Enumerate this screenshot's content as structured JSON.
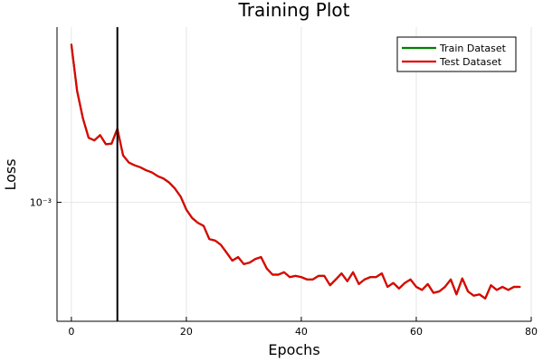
{
  "chart_data": {
    "type": "line",
    "title": "Training Plot",
    "xlabel": "Epochs",
    "ylabel": "Loss",
    "xlim": [
      -2.5,
      80
    ],
    "x_ticks": [
      0,
      20,
      40,
      60,
      80
    ],
    "y_scale": "log",
    "y_tick_values": [
      0.001
    ],
    "y_tick_labels": [
      "10⁻³"
    ],
    "ylim": [
      0.000304,
      0.00578
    ],
    "grid": true,
    "legend_position": "top-right",
    "vline": {
      "x": 8,
      "color": "#000000"
    },
    "series": [
      {
        "name": "Train Dataset",
        "color": "#008000",
        "x": [
          0,
          1,
          2,
          3,
          4,
          5,
          6,
          7,
          8,
          9,
          10,
          11,
          12,
          13,
          14,
          15,
          16,
          17,
          18,
          19,
          20,
          21,
          22,
          23,
          24,
          25,
          26,
          27,
          28,
          29,
          30,
          31,
          32,
          33,
          34,
          35,
          36,
          37,
          38,
          39,
          40,
          41,
          42,
          43,
          44,
          45,
          46,
          47,
          48,
          49,
          50,
          51,
          52,
          53,
          54,
          55,
          56,
          57,
          58,
          59,
          60,
          61,
          62,
          63,
          64,
          65,
          66,
          67,
          68,
          69,
          70,
          71,
          72,
          73,
          74,
          75,
          76,
          77,
          78
        ],
        "y": [
          0.00485,
          0.00305,
          0.00232,
          0.00191,
          0.00186,
          0.00196,
          0.00179,
          0.0018,
          0.00209,
          0.0016,
          0.00149,
          0.00145,
          0.00142,
          0.00138,
          0.00135,
          0.0013,
          0.00127,
          0.00122,
          0.00115,
          0.00106,
          0.00093,
          0.000855,
          0.000815,
          0.00079,
          0.000692,
          0.000682,
          0.000654,
          0.000604,
          0.000558,
          0.000578,
          0.000539,
          0.000547,
          0.000567,
          0.000578,
          0.000515,
          0.000485,
          0.000485,
          0.000497,
          0.000473,
          0.000479,
          0.000473,
          0.000462,
          0.000462,
          0.000479,
          0.000479,
          0.000436,
          0.000462,
          0.000491,
          0.000454,
          0.000497,
          0.000441,
          0.000462,
          0.000473,
          0.000473,
          0.000491,
          0.000429,
          0.000446,
          0.000422,
          0.000446,
          0.000462,
          0.000429,
          0.000416,
          0.000441,
          0.000404,
          0.00041,
          0.000429,
          0.000462,
          0.000398,
          0.000467,
          0.00041,
          0.000393,
          0.000398,
          0.000382,
          0.000436,
          0.000416,
          0.000429,
          0.000416,
          0.000429,
          0.000429
        ]
      },
      {
        "name": "Test Dataset",
        "color": "#e00000",
        "x": [
          0,
          1,
          2,
          3,
          4,
          5,
          6,
          7,
          8,
          9,
          10,
          11,
          12,
          13,
          14,
          15,
          16,
          17,
          18,
          19,
          20,
          21,
          22,
          23,
          24,
          25,
          26,
          27,
          28,
          29,
          30,
          31,
          32,
          33,
          34,
          35,
          36,
          37,
          38,
          39,
          40,
          41,
          42,
          43,
          44,
          45,
          46,
          47,
          48,
          49,
          50,
          51,
          52,
          53,
          54,
          55,
          56,
          57,
          58,
          59,
          60,
          61,
          62,
          63,
          64,
          65,
          66,
          67,
          68,
          69,
          70,
          71,
          72,
          73,
          74,
          75,
          76,
          77,
          78
        ],
        "y": [
          0.00485,
          0.00305,
          0.00232,
          0.00191,
          0.00186,
          0.00196,
          0.00179,
          0.0018,
          0.00209,
          0.0016,
          0.00149,
          0.00145,
          0.00142,
          0.00138,
          0.00135,
          0.0013,
          0.00127,
          0.00122,
          0.00115,
          0.00106,
          0.00093,
          0.000855,
          0.000815,
          0.00079,
          0.000692,
          0.000682,
          0.000654,
          0.000604,
          0.000558,
          0.000578,
          0.000539,
          0.000547,
          0.000567,
          0.000578,
          0.000515,
          0.000485,
          0.000485,
          0.000497,
          0.000473,
          0.000479,
          0.000473,
          0.000462,
          0.000462,
          0.000479,
          0.000479,
          0.000436,
          0.000462,
          0.000491,
          0.000454,
          0.000497,
          0.000441,
          0.000462,
          0.000473,
          0.000473,
          0.000491,
          0.000429,
          0.000446,
          0.000422,
          0.000446,
          0.000462,
          0.000429,
          0.000416,
          0.000441,
          0.000404,
          0.00041,
          0.000429,
          0.000462,
          0.000398,
          0.000467,
          0.00041,
          0.000393,
          0.000398,
          0.000382,
          0.000436,
          0.000416,
          0.000429,
          0.000416,
          0.000429,
          0.000429
        ]
      }
    ]
  }
}
